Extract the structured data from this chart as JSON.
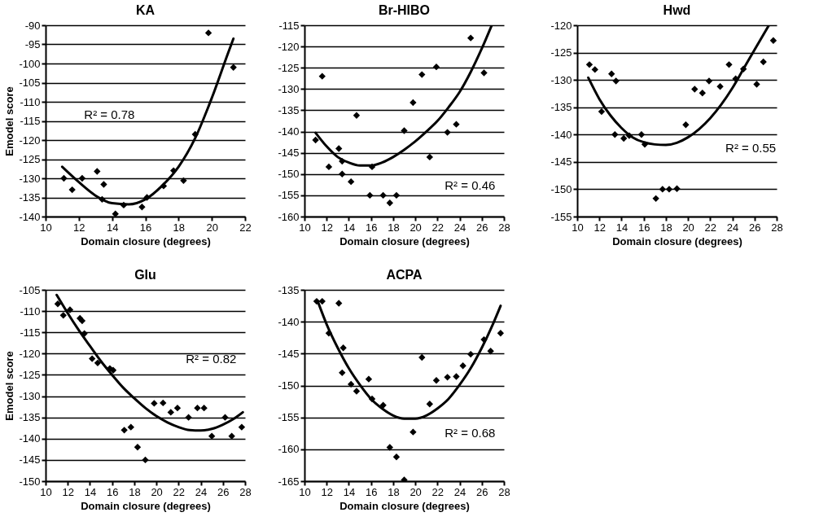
{
  "chart_data": [
    {
      "type": "scatter",
      "title": "KA",
      "xlabel": "Domain closure (degrees)",
      "ylabel": "Emodel score",
      "xlim": [
        10,
        22
      ],
      "xticks": [
        10,
        12,
        14,
        16,
        18,
        20,
        22
      ],
      "ylim": [
        -140,
        -90
      ],
      "yticks": [
        -140,
        -135,
        -130,
        -125,
        -120,
        -115,
        -110,
        -105,
        -100,
        -95,
        -90
      ],
      "grid": "y",
      "annotations": [
        "R² = 0.78"
      ],
      "series": [
        {
          "marker": "diamond",
          "color": "#000000",
          "x": [
            11.1,
            11.6,
            12.2,
            13.1,
            13.4,
            13.5,
            14.2,
            14.7,
            15.8,
            16.1,
            17.1,
            17.7,
            18.3,
            19.0,
            19.8,
            21.3
          ],
          "values": [
            -130,
            -133,
            -130,
            -128.2,
            -135.5,
            -131.6,
            -139.3,
            -137,
            -137.5,
            -135,
            -132,
            -128,
            -130.6,
            -118.5,
            -92,
            -101
          ]
        },
        {
          "type": "line",
          "color": "#000000",
          "x": [
            11,
            12,
            13,
            14,
            15,
            16,
            17,
            18,
            19,
            20,
            21,
            21.3
          ],
          "values": [
            -127,
            -131,
            -134.5,
            -136.5,
            -136.8,
            -135.5,
            -132,
            -127,
            -119.5,
            -109,
            -97,
            -93.5
          ]
        }
      ]
    },
    {
      "type": "scatter",
      "title": "Br-HIBO",
      "xlabel": "Domain closure (degrees)",
      "xlim": [
        10,
        28
      ],
      "xticks": [
        10,
        12,
        14,
        16,
        18,
        20,
        22,
        24,
        26,
        28
      ],
      "ylim": [
        -160,
        -115
      ],
      "yticks": [
        -160,
        -155,
        -150,
        -145,
        -140,
        -135,
        -130,
        -125,
        -120,
        -115
      ],
      "grid": "y",
      "annotations": [
        "R² = 0.46"
      ],
      "series": [
        {
          "marker": "diamond",
          "color": "#000000",
          "x": [
            11.0,
            11.6,
            12.2,
            13.1,
            13.4,
            13.4,
            14.2,
            14.7,
            15.9,
            16.1,
            17.1,
            17.7,
            18.3,
            19.0,
            19.8,
            20.6,
            21.3,
            21.9,
            22.9,
            23.7,
            25.0,
            26.2
          ],
          "values": [
            -142,
            -127,
            -148.3,
            -144,
            -147,
            -150,
            -151.8,
            -136.2,
            -155,
            -148.3,
            -155,
            -156.8,
            -155,
            -139.8,
            -133.2,
            -126.6,
            -146,
            -124.8,
            -140.2,
            -138.3,
            -118,
            -126.2
          ]
        },
        {
          "type": "line",
          "color": "#000000",
          "x": [
            11,
            12,
            13,
            14,
            15,
            16,
            17,
            18,
            19,
            20,
            21,
            22,
            23,
            24,
            25,
            26,
            26.9
          ],
          "values": [
            -140.3,
            -143.5,
            -146,
            -147.3,
            -148,
            -148,
            -147.3,
            -146,
            -144.3,
            -142.3,
            -140,
            -137.5,
            -134.3,
            -130.7,
            -126,
            -120.5,
            -115
          ]
        }
      ]
    },
    {
      "type": "scatter",
      "title": "Hwd",
      "xlabel": "Domain closure (degrees)",
      "xlim": [
        10,
        28
      ],
      "xticks": [
        10,
        12,
        14,
        16,
        18,
        20,
        22,
        24,
        26,
        28
      ],
      "ylim": [
        -155,
        -120
      ],
      "yticks": [
        -155,
        -150,
        -145,
        -140,
        -135,
        -130,
        -125,
        -120
      ],
      "grid": "y",
      "annotations": [
        "R² = 0.55"
      ],
      "series": [
        {
          "marker": "diamond",
          "color": "#000000",
          "x": [
            11.1,
            11.6,
            12.2,
            13.1,
            13.4,
            13.5,
            14.2,
            14.7,
            15.8,
            16.1,
            17.1,
            17.7,
            18.3,
            19.0,
            19.8,
            20.6,
            21.3,
            21.9,
            22.9,
            23.7,
            24.3,
            25.0,
            26.2,
            26.8,
            27.7
          ],
          "values": [
            -127.2,
            -128.1,
            -135.8,
            -128.9,
            -140,
            -130.2,
            -140.7,
            -140.2,
            -140,
            -141.8,
            -151.7,
            -150,
            -150,
            -149.9,
            -138.2,
            -131.7,
            -132.4,
            -130.2,
            -131.2,
            -127.2,
            -129.8,
            -128,
            -130.8,
            -126.7,
            -122.8
          ]
        },
        {
          "type": "line",
          "color": "#000000",
          "x": [
            11,
            12,
            13,
            14,
            15,
            16,
            17,
            18,
            19,
            20,
            21,
            22,
            23,
            24,
            25,
            26,
            27.3
          ],
          "values": [
            -129.6,
            -133.5,
            -136.5,
            -138.8,
            -140.5,
            -141.4,
            -141.8,
            -141.9,
            -141.5,
            -140.5,
            -139,
            -137,
            -134.5,
            -131.5,
            -128,
            -124.5,
            -120
          ]
        }
      ]
    },
    {
      "type": "scatter",
      "title": "Glu",
      "xlabel": "Domain closure (degrees)",
      "ylabel": "Emodel score",
      "xlim": [
        10,
        28
      ],
      "xticks": [
        10,
        12,
        14,
        16,
        18,
        20,
        22,
        24,
        26,
        28
      ],
      "ylim": [
        -150,
        -105
      ],
      "yticks": [
        -150,
        -145,
        -140,
        -135,
        -130,
        -125,
        -120,
        -115,
        -110,
        -105
      ],
      "grid": "y",
      "annotations": [
        "R² = 0.82"
      ],
      "series": [
        {
          "marker": "diamond",
          "color": "#000000",
          "x": [
            11.1,
            11.6,
            12.2,
            13.1,
            13.3,
            13.5,
            14.2,
            14.7,
            15.8,
            16.1,
            17.1,
            17.7,
            18.3,
            19.0,
            19.8,
            20.6,
            21.3,
            21.9,
            22.9,
            23.7,
            24.3,
            25.0,
            26.2,
            26.8,
            27.7
          ],
          "values": [
            -108.3,
            -111,
            -109.7,
            -111.7,
            -112.3,
            -115.3,
            -121.2,
            -122.2,
            -123.5,
            -123.9,
            -138,
            -137.3,
            -142,
            -145,
            -131.7,
            -131.6,
            -133.8,
            -132.8,
            -135,
            -132.8,
            -132.8,
            -139.4,
            -135,
            -139.4,
            -137.3
          ]
        },
        {
          "type": "line",
          "color": "#000000",
          "x": [
            11,
            12,
            13,
            14,
            15,
            16,
            17,
            18,
            19,
            20,
            21,
            22,
            23,
            24,
            25,
            26,
            27,
            27.8
          ],
          "values": [
            -106.2,
            -110.5,
            -114.5,
            -118.2,
            -121.8,
            -125,
            -128,
            -130.5,
            -132.8,
            -134.7,
            -136.2,
            -137.3,
            -138,
            -138.1,
            -137.7,
            -136.7,
            -135.3,
            -133.8
          ]
        }
      ]
    },
    {
      "type": "scatter",
      "title": "ACPA",
      "xlabel": "Domain closure (degrees)",
      "xlim": [
        10,
        28
      ],
      "xticks": [
        10,
        12,
        14,
        16,
        18,
        20,
        22,
        24,
        26,
        28
      ],
      "ylim": [
        -165,
        -135
      ],
      "yticks": [
        -165,
        -160,
        -155,
        -150,
        -145,
        -140,
        -135
      ],
      "grid": "y",
      "annotations": [
        "R² = 0.68"
      ],
      "series": [
        {
          "marker": "diamond",
          "color": "#000000",
          "x": [
            11.1,
            11.6,
            12.2,
            13.1,
            13.5,
            13.4,
            14.2,
            14.7,
            15.8,
            16.1,
            17.1,
            17.7,
            18.3,
            19.0,
            19.8,
            20.6,
            21.3,
            21.9,
            22.9,
            23.7,
            24.3,
            25.0,
            26.2,
            26.8,
            27.7
          ],
          "values": [
            -136.8,
            -136.8,
            -141.8,
            -137.1,
            -144.1,
            -148,
            -149.8,
            -150.9,
            -149,
            -152.1,
            -153.1,
            -159.7,
            -161.2,
            -164.8,
            -157.3,
            -145.6,
            -152.9,
            -149.2,
            -148.7,
            -148.6,
            -146.9,
            -145.1,
            -142.8,
            -144.6,
            -141.8
          ]
        },
        {
          "type": "line",
          "color": "#000000",
          "x": [
            11.2,
            12,
            13,
            14,
            15,
            16,
            17,
            18,
            19,
            20,
            21,
            22,
            23,
            24,
            25,
            26,
            27,
            27.7
          ],
          "values": [
            -136.8,
            -140.4,
            -144.1,
            -147.3,
            -149.9,
            -152.1,
            -153.6,
            -154.7,
            -155.2,
            -155.2,
            -154.7,
            -153.6,
            -152.1,
            -149.9,
            -147.3,
            -144.1,
            -140.4,
            -137.5
          ]
        }
      ]
    }
  ]
}
